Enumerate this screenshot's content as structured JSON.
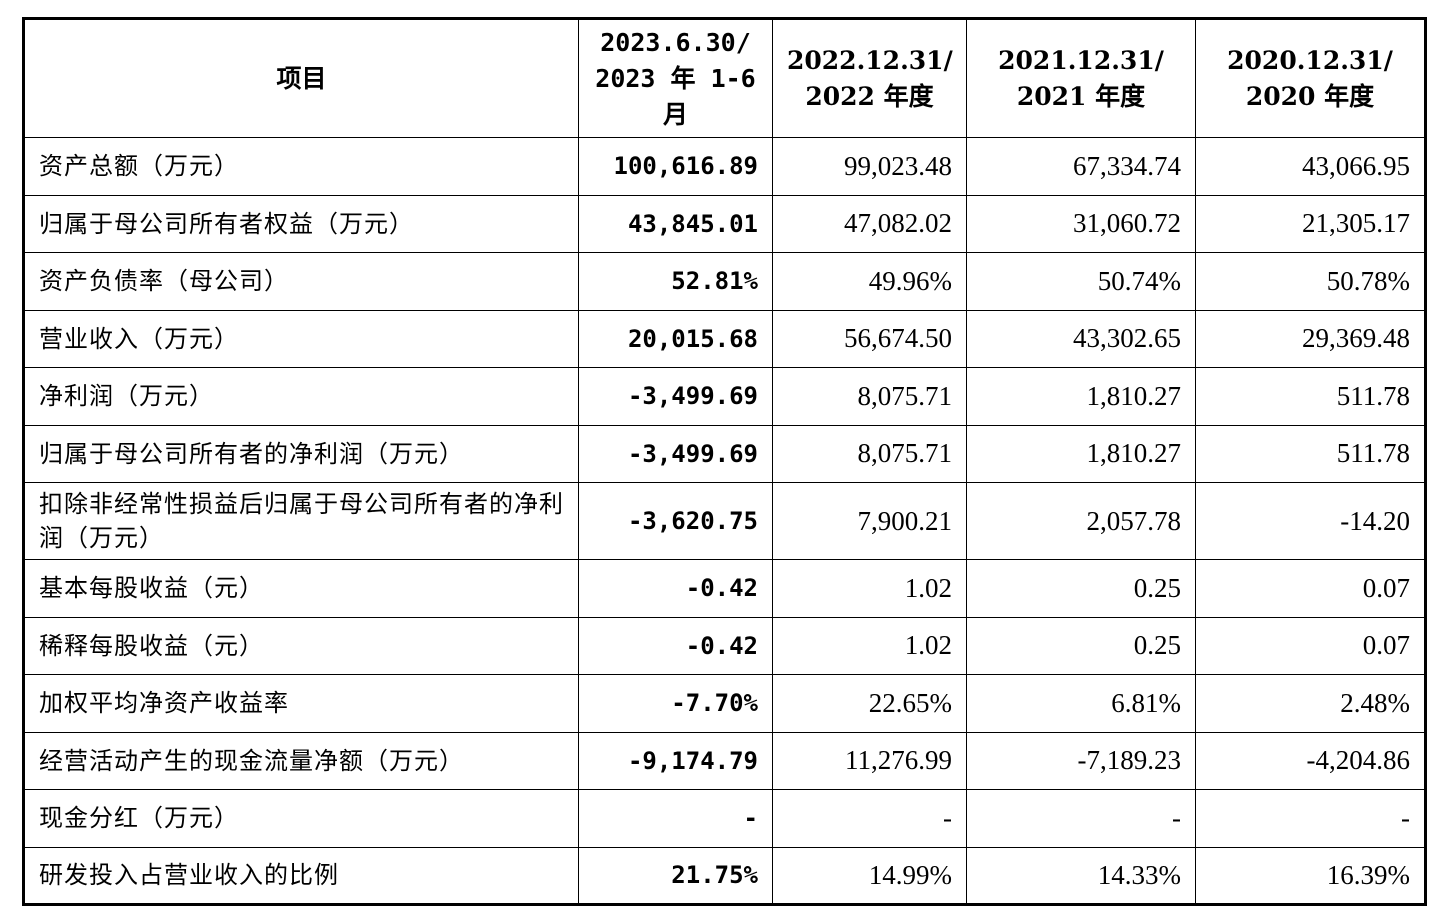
{
  "table": {
    "headers": {
      "item": "项目",
      "col1_line1": "2023.6.30/",
      "col1_line2": "2023 年 1-6",
      "col1_line3": "月",
      "col2_line1": "2022.12.31/",
      "col2_line2": "2022 年度",
      "col3_line1": "2021.12.31/",
      "col3_line2": "2021 年度",
      "col4_line1": "2020.12.31/",
      "col4_line2": "2020 年度"
    },
    "rows": [
      {
        "label": "资产总额（万元）",
        "v2023h1": "100,616.89",
        "v2022": "99,023.48",
        "v2021": "67,334.74",
        "v2020": "43,066.95"
      },
      {
        "label": "归属于母公司所有者权益（万元）",
        "v2023h1": "43,845.01",
        "v2022": "47,082.02",
        "v2021": "31,060.72",
        "v2020": "21,305.17"
      },
      {
        "label": "资产负债率（母公司）",
        "v2023h1": "52.81%",
        "v2022": "49.96%",
        "v2021": "50.74%",
        "v2020": "50.78%"
      },
      {
        "label": "营业收入（万元）",
        "v2023h1": "20,015.68",
        "v2022": "56,674.50",
        "v2021": "43,302.65",
        "v2020": "29,369.48"
      },
      {
        "label": "净利润（万元）",
        "v2023h1": "-3,499.69",
        "v2022": "8,075.71",
        "v2021": "1,810.27",
        "v2020": "511.78"
      },
      {
        "label": "归属于母公司所有者的净利润（万元）",
        "v2023h1": "-3,499.69",
        "v2022": "8,075.71",
        "v2021": "1,810.27",
        "v2020": "511.78"
      },
      {
        "label": "扣除非经常性损益后归属于母公司所有者的净利润（万元）",
        "v2023h1": "-3,620.75",
        "v2022": "7,900.21",
        "v2021": "2,057.78",
        "v2020": "-14.20"
      },
      {
        "label": "基本每股收益（元）",
        "v2023h1": "-0.42",
        "v2022": "1.02",
        "v2021": "0.25",
        "v2020": "0.07"
      },
      {
        "label": "稀释每股收益（元）",
        "v2023h1": "-0.42",
        "v2022": "1.02",
        "v2021": "0.25",
        "v2020": "0.07"
      },
      {
        "label": "加权平均净资产收益率",
        "v2023h1": "-7.70%",
        "v2022": "22.65%",
        "v2021": "6.81%",
        "v2020": "2.48%"
      },
      {
        "label": "经营活动产生的现金流量净额（万元）",
        "v2023h1": "-9,174.79",
        "v2022": "11,276.99",
        "v2021": "-7,189.23",
        "v2020": "-4,204.86"
      },
      {
        "label": "现金分红（万元）",
        "v2023h1": "-",
        "v2022": "-",
        "v2021": "-",
        "v2020": "-"
      },
      {
        "label": "研发投入占营业收入的比例",
        "v2023h1": "21.75%",
        "v2022": "14.99%",
        "v2021": "14.33%",
        "v2020": "16.39%"
      }
    ]
  }
}
